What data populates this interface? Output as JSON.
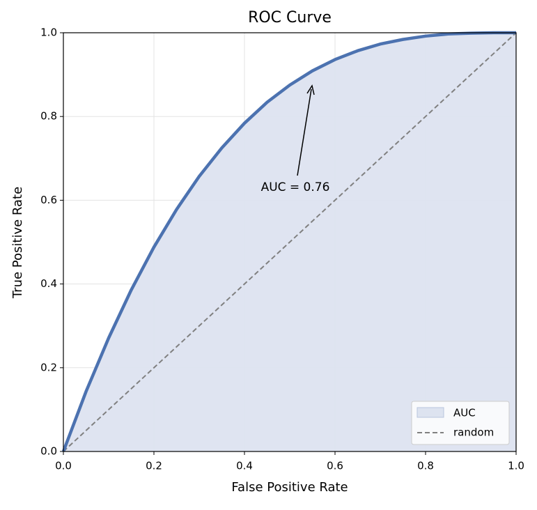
{
  "chart_data": {
    "type": "roc",
    "title": "ROC Curve",
    "xlabel": "False Positive Rate",
    "ylabel": "True Positive Rate",
    "x": [
      0,
      0.05,
      0.1,
      0.15,
      0.2,
      0.25,
      0.3,
      0.35,
      0.4,
      0.45,
      0.5,
      0.55,
      0.6,
      0.65,
      0.7,
      0.75,
      0.8,
      0.85,
      0.9,
      0.95,
      1.0
    ],
    "series": [
      {
        "name": "AUC",
        "color": "#4c72b0",
        "fill": "#dde3f0",
        "values": [
          0,
          0.143,
          0.271,
          0.386,
          0.488,
          0.578,
          0.657,
          0.725,
          0.784,
          0.834,
          0.875,
          0.909,
          0.936,
          0.957,
          0.973,
          0.984,
          0.992,
          0.997,
          0.999,
          1.0,
          1.0
        ]
      },
      {
        "name": "random",
        "color": "#808080",
        "x": [
          0,
          1
        ],
        "values": [
          0,
          1
        ]
      }
    ],
    "annotation": "AUC = 0.76",
    "xlim": [
      0,
      1
    ],
    "ylim": [
      0,
      1
    ],
    "xticks": [
      {
        "value": 0,
        "label": "0.0"
      },
      0.2,
      0.4,
      0.6,
      0.8,
      {
        "value": 1,
        "label": "1.0"
      }
    ],
    "yticks": [
      {
        "value": 0,
        "label": "0.0"
      },
      0.2,
      0.4,
      0.6,
      0.8,
      {
        "value": 1,
        "label": "1.0"
      }
    ],
    "grid": true,
    "legend": "lower right"
  }
}
